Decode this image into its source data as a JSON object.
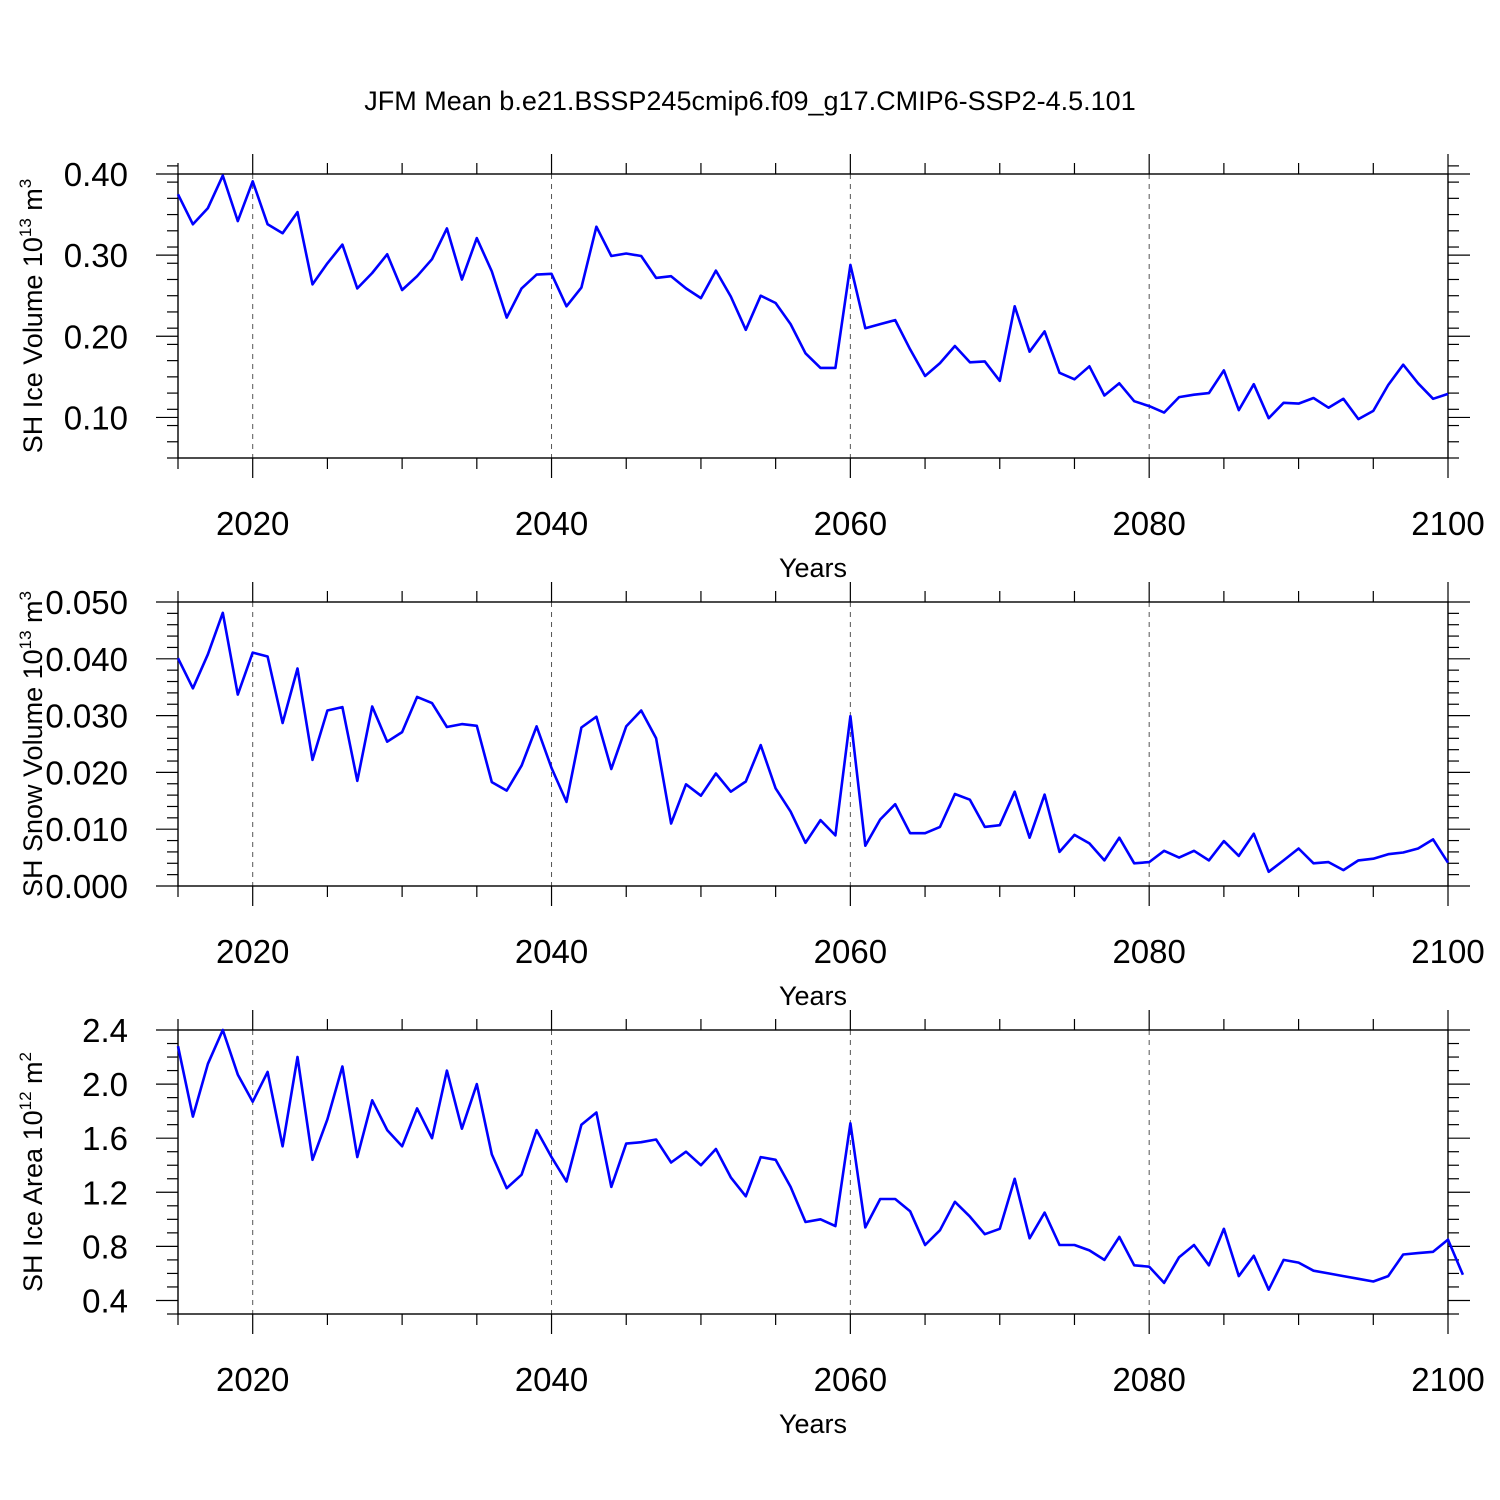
{
  "figure_title": "JFM Mean b.e21.BSSP245cmip6.f09_g17.CMIP6-SSP2-4.5.101",
  "colors": {
    "series": "#0000ff",
    "axes": "#000000",
    "grid": "#555555"
  },
  "chart_data": [
    {
      "type": "line",
      "title": "",
      "xlabel": "Years",
      "ylabel_text": "SH Ice Volume 10",
      "ylabel_exp": "13",
      "ylabel_unit": " m",
      "ylabel_unit_exp": "3",
      "xlim": [
        2015,
        2100
      ],
      "ylim": [
        0.05,
        0.4
      ],
      "x_ticks": [
        2020,
        2040,
        2060,
        2080,
        2100
      ],
      "x_tick_labels": [
        "2020",
        "2040",
        "2060",
        "2080",
        "2100"
      ],
      "y_ticks": [
        0.1,
        0.2,
        0.3,
        0.4
      ],
      "y_tick_labels": [
        "0.10",
        "0.20",
        "0.30",
        "0.40"
      ],
      "x_minor_step": 5,
      "y_minor_step": 0.02,
      "grid": "x-major dashed",
      "series": [
        {
          "name": "SH Ice Volume",
          "x_start": 2015,
          "values": [
            0.375,
            0.338,
            0.358,
            0.398,
            0.342,
            0.391,
            0.338,
            0.327,
            0.353,
            0.264,
            0.29,
            0.313,
            0.259,
            0.278,
            0.301,
            0.257,
            0.274,
            0.295,
            0.333,
            0.27,
            0.321,
            0.28,
            0.223,
            0.259,
            0.276,
            0.277,
            0.237,
            0.26,
            0.335,
            0.299,
            0.302,
            0.299,
            0.272,
            0.274,
            0.259,
            0.247,
            0.281,
            0.249,
            0.208,
            0.25,
            0.241,
            0.215,
            0.179,
            0.161,
            0.161,
            0.288,
            0.21,
            0.215,
            0.22,
            0.184,
            0.151,
            0.167,
            0.188,
            0.168,
            0.169,
            0.145,
            0.237,
            0.181,
            0.206,
            0.155,
            0.147,
            0.163,
            0.127,
            0.142,
            0.12,
            0.114,
            0.106,
            0.125,
            0.128,
            0.13,
            0.158,
            0.109,
            0.141,
            0.099,
            0.118,
            0.117,
            0.124,
            0.112,
            0.123,
            0.098,
            0.108,
            0.14,
            0.165,
            0.142,
            0.123,
            0.129
          ]
        }
      ]
    },
    {
      "type": "line",
      "title": "",
      "xlabel": "Years",
      "ylabel_text": "SH Snow Volume 10",
      "ylabel_exp": "13",
      "ylabel_unit": " m",
      "ylabel_unit_exp": "3",
      "xlim": [
        2015,
        2100
      ],
      "ylim": [
        0.0,
        0.05
      ],
      "x_ticks": [
        2020,
        2040,
        2060,
        2080,
        2100
      ],
      "x_tick_labels": [
        "2020",
        "2040",
        "2060",
        "2080",
        "2100"
      ],
      "y_ticks": [
        0.0,
        0.01,
        0.02,
        0.03,
        0.04,
        0.05
      ],
      "y_tick_labels": [
        "0.000",
        "0.010",
        "0.020",
        "0.030",
        "0.040",
        "0.050"
      ],
      "x_minor_step": 5,
      "y_minor_step": 0.002,
      "grid": "x-major dashed",
      "series": [
        {
          "name": "SH Snow Volume",
          "x_start": 2015,
          "values": [
            0.0401,
            0.0348,
            0.0408,
            0.0481,
            0.0337,
            0.0411,
            0.0404,
            0.0287,
            0.0383,
            0.0222,
            0.0309,
            0.0315,
            0.0185,
            0.0316,
            0.0254,
            0.0271,
            0.0333,
            0.0322,
            0.028,
            0.0285,
            0.0282,
            0.0183,
            0.0168,
            0.0212,
            0.0281,
            0.0208,
            0.0148,
            0.0279,
            0.0298,
            0.0206,
            0.0281,
            0.0309,
            0.026,
            0.011,
            0.0179,
            0.0159,
            0.0198,
            0.0166,
            0.0184,
            0.0248,
            0.0172,
            0.0131,
            0.0076,
            0.0116,
            0.0089,
            0.0299,
            0.0071,
            0.0117,
            0.0144,
            0.0093,
            0.0093,
            0.0104,
            0.0162,
            0.0152,
            0.0104,
            0.0107,
            0.0166,
            0.0085,
            0.0161,
            0.006,
            0.009,
            0.0075,
            0.0045,
            0.0085,
            0.004,
            0.0042,
            0.0062,
            0.005,
            0.0062,
            0.0045,
            0.0079,
            0.0053,
            0.0092,
            0.0025,
            0.0045,
            0.0066,
            0.004,
            0.0042,
            0.0028,
            0.0045,
            0.0048,
            0.0056,
            0.0059,
            0.0066,
            0.0082,
            0.0041
          ]
        }
      ]
    },
    {
      "type": "line",
      "title": "",
      "xlabel": "Years",
      "ylabel_text": "SH Ice Area 10",
      "ylabel_exp": "12",
      "ylabel_unit": " m",
      "ylabel_unit_exp": "2",
      "xlim": [
        2015,
        2100
      ],
      "ylim": [
        0.3,
        2.4
      ],
      "x_ticks": [
        2020,
        2040,
        2060,
        2080,
        2100
      ],
      "x_tick_labels": [
        "2020",
        "2040",
        "2060",
        "2080",
        "2100"
      ],
      "y_ticks": [
        0.4,
        0.8,
        1.2,
        1.6,
        2.0,
        2.4
      ],
      "y_tick_labels": [
        "0.4",
        "0.8",
        "1.2",
        "1.6",
        "2.0",
        "2.4"
      ],
      "x_minor_step": 5,
      "y_minor_step": 0.1,
      "grid": "x-major dashed",
      "series": [
        {
          "name": "SH Ice Area",
          "x_start": 2015,
          "values": [
            2.28,
            1.76,
            2.15,
            2.4,
            2.07,
            1.87,
            2.09,
            1.54,
            2.2,
            1.44,
            1.74,
            2.13,
            1.46,
            1.88,
            1.66,
            1.54,
            1.82,
            1.6,
            2.1,
            1.67,
            2.0,
            1.48,
            1.23,
            1.33,
            1.66,
            1.46,
            1.28,
            1.7,
            1.79,
            1.24,
            1.56,
            1.57,
            1.59,
            1.42,
            1.5,
            1.4,
            1.52,
            1.31,
            1.17,
            1.46,
            1.44,
            1.24,
            0.98,
            1.0,
            0.95,
            1.71,
            0.94,
            1.15,
            1.15,
            1.06,
            0.81,
            0.92,
            1.13,
            1.02,
            0.89,
            0.93,
            1.3,
            0.86,
            1.05,
            0.81,
            0.81,
            0.77,
            0.7,
            0.87,
            0.66,
            0.65,
            0.53,
            0.72,
            0.81,
            0.66,
            0.93,
            0.58,
            0.73,
            0.48,
            0.7,
            0.68,
            0.62,
            0.6,
            0.58,
            0.56,
            0.54,
            0.58,
            0.74,
            0.75,
            0.76,
            0.85,
            0.59
          ]
        }
      ]
    }
  ]
}
